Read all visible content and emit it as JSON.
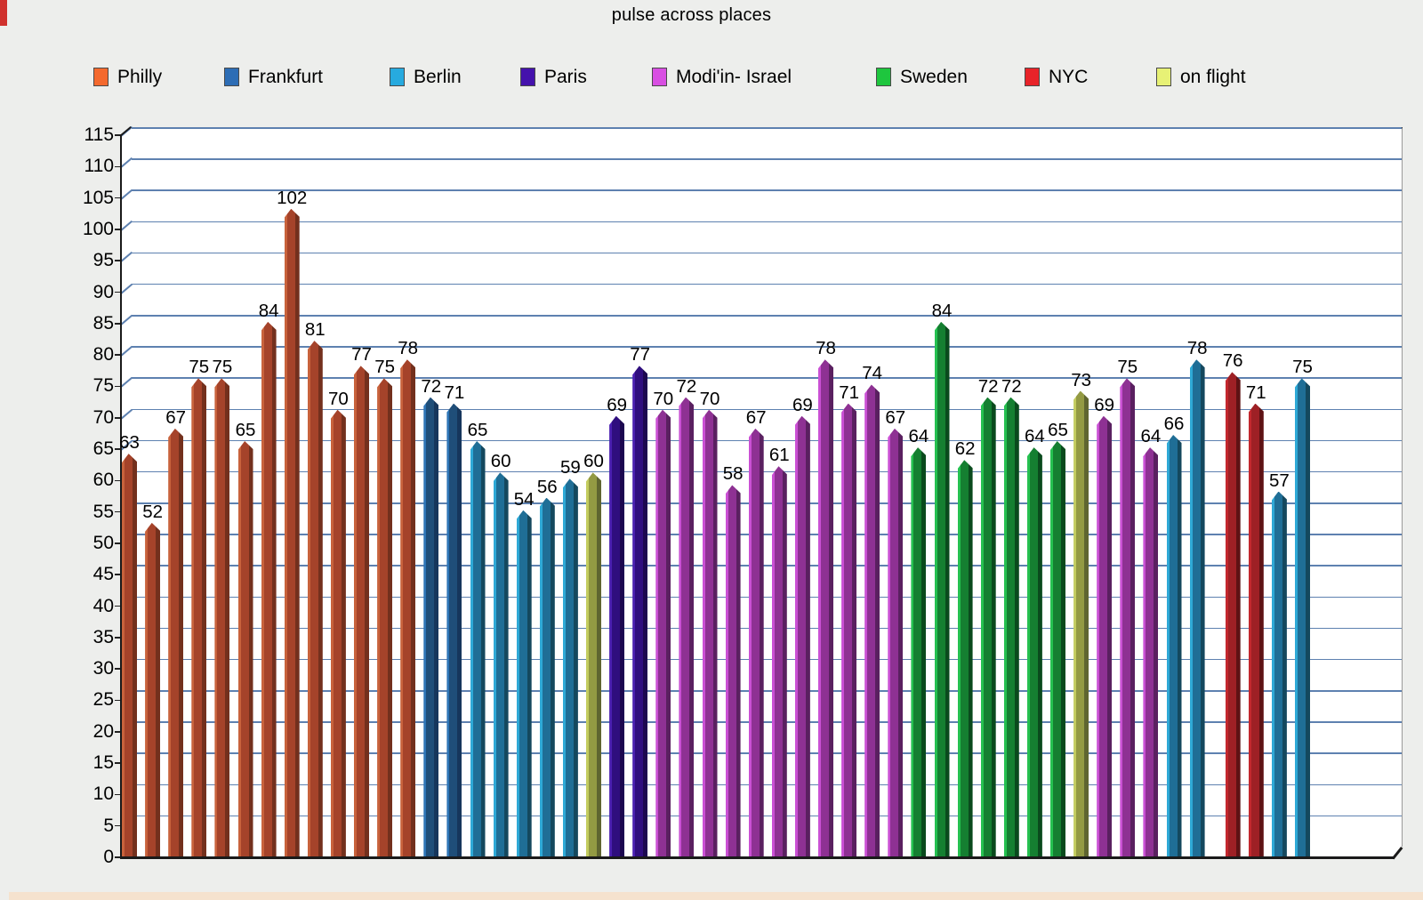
{
  "page": {
    "background": "#EDEEEC",
    "bottom_strip_color": "#F5E2CE",
    "corner_accent_color": "#D0312D"
  },
  "chart_data": {
    "type": "bar",
    "title": "pulse across places",
    "xlabel": "",
    "ylabel": "",
    "ylim": [
      0,
      115
    ],
    "ytick_step": 5,
    "grid": true,
    "legend_position": "top",
    "plot_bg": "#FFFFFF",
    "gridline_color": "#5E81B0",
    "zero_backline_color": "#8a8a8a",
    "axis_color": "#1a1a1a",
    "legend": [
      "Philly",
      "Frankfurt",
      "Berlin",
      "Paris",
      "Modi'in- Israel",
      "Sweden",
      "NYC",
      "on flight"
    ],
    "series_colors": {
      "Philly": {
        "swatch": "#F4692E",
        "edge": "#C8623C",
        "face": "#A5432A",
        "side": "#73301D"
      },
      "Frankfurt": {
        "swatch": "#2D6DB5",
        "edge": "#2E75B6",
        "face": "#1F4E79",
        "side": "#16365C"
      },
      "Berlin": {
        "swatch": "#27AADF",
        "edge": "#2EA9D6",
        "face": "#1F6E96",
        "side": "#14485E"
      },
      "Paris": {
        "swatch": "#4412AC",
        "edge": "#4A1FB0",
        "face": "#2F0E7E",
        "side": "#1C0850"
      },
      "Modi'in- Israel": {
        "swatch": "#D84FE2",
        "edge": "#CA50D4",
        "face": "#8E3193",
        "side": "#5A2060"
      },
      "Sweden": {
        "swatch": "#1EC63E",
        "edge": "#25C150",
        "face": "#157F31",
        "side": "#0A4A1D"
      },
      "NYC": {
        "swatch": "#E82329",
        "edge": "#C3282E",
        "face": "#9E2025",
        "side": "#5E1214"
      },
      "on flight": {
        "swatch": "#E7F175",
        "edge": "#C3CC5F",
        "face": "#939A43",
        "side": "#5F6530"
      }
    },
    "gap_after_index": 46,
    "bars": [
      {
        "place": "Philly",
        "value": 63
      },
      {
        "place": "Philly",
        "value": 52
      },
      {
        "place": "Philly",
        "value": 67
      },
      {
        "place": "Philly",
        "value": 75
      },
      {
        "place": "Philly",
        "value": 75
      },
      {
        "place": "Philly",
        "value": 65
      },
      {
        "place": "Philly",
        "value": 84
      },
      {
        "place": "Philly",
        "value": 102
      },
      {
        "place": "Philly",
        "value": 81
      },
      {
        "place": "Philly",
        "value": 70
      },
      {
        "place": "Philly",
        "value": 77
      },
      {
        "place": "Philly",
        "value": 75
      },
      {
        "place": "Philly",
        "value": 78
      },
      {
        "place": "Frankfurt",
        "value": 72
      },
      {
        "place": "Frankfurt",
        "value": 71
      },
      {
        "place": "Berlin",
        "value": 65
      },
      {
        "place": "Berlin",
        "value": 60
      },
      {
        "place": "Berlin",
        "value": 54
      },
      {
        "place": "Berlin",
        "value": 56
      },
      {
        "place": "Berlin",
        "value": 59
      },
      {
        "place": "on flight",
        "value": 60
      },
      {
        "place": "Paris",
        "value": 69
      },
      {
        "place": "Paris",
        "value": 77
      },
      {
        "place": "Modi'in- Israel",
        "value": 70
      },
      {
        "place": "Modi'in- Israel",
        "value": 72
      },
      {
        "place": "Modi'in- Israel",
        "value": 70
      },
      {
        "place": "Modi'in- Israel",
        "value": 58
      },
      {
        "place": "Modi'in- Israel",
        "value": 67
      },
      {
        "place": "Modi'in- Israel",
        "value": 61
      },
      {
        "place": "Modi'in- Israel",
        "value": 69
      },
      {
        "place": "Modi'in- Israel",
        "value": 78
      },
      {
        "place": "Modi'in- Israel",
        "value": 71
      },
      {
        "place": "Modi'in- Israel",
        "value": 74
      },
      {
        "place": "Modi'in- Israel",
        "value": 67
      },
      {
        "place": "Sweden",
        "value": 64
      },
      {
        "place": "Sweden",
        "value": 84
      },
      {
        "place": "Sweden",
        "value": 62
      },
      {
        "place": "Sweden",
        "value": 72
      },
      {
        "place": "Sweden",
        "value": 72
      },
      {
        "place": "Sweden",
        "value": 64
      },
      {
        "place": "Sweden",
        "value": 65
      },
      {
        "place": "on flight",
        "value": 73
      },
      {
        "place": "Modi'in- Israel",
        "value": 69
      },
      {
        "place": "Modi'in- Israel",
        "value": 75
      },
      {
        "place": "Modi'in- Israel",
        "value": 64
      },
      {
        "place": "Berlin",
        "value": 66
      },
      {
        "place": "Berlin",
        "value": 78
      },
      {
        "place": "NYC",
        "value": 76
      },
      {
        "place": "NYC",
        "value": 71
      },
      {
        "place": "Berlin",
        "value": 57
      },
      {
        "place": "Berlin",
        "value": 75
      }
    ]
  }
}
